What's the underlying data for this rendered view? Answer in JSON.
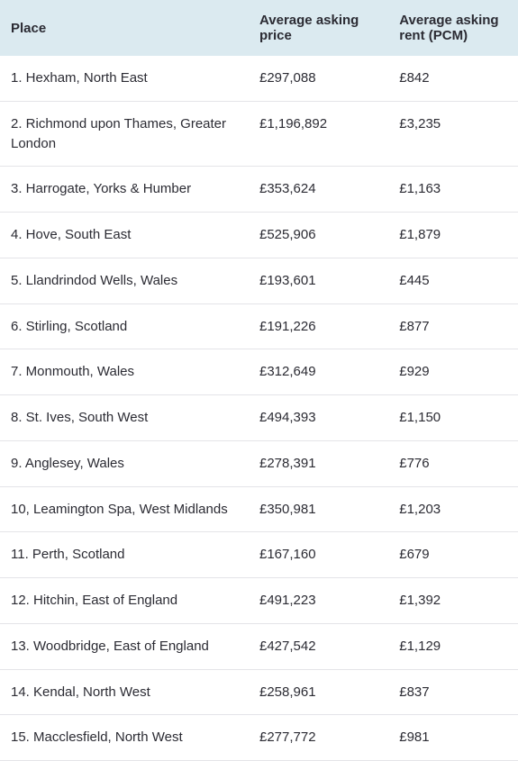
{
  "table": {
    "type": "table",
    "header_bg": "#dbeaf0",
    "row_border_color": "#e4e4e8",
    "text_color": "#2b2b33",
    "font_size": 15,
    "columns": [
      {
        "label": "Place",
        "key": "place",
        "width_pct": 48
      },
      {
        "label": "Average asking price",
        "key": "price",
        "width_pct": 27
      },
      {
        "label": "Average asking rent (PCM)",
        "key": "rent",
        "width_pct": 25
      }
    ],
    "rows": [
      {
        "place": "1. Hexham, North East",
        "price": "£297,088",
        "rent": "£842"
      },
      {
        "place": "2. Richmond upon Thames, Greater London",
        "price": "£1,196,892",
        "rent": "£3,235"
      },
      {
        "place": "3. Harrogate, Yorks & Humber",
        "price": "£353,624",
        "rent": "£1,163"
      },
      {
        "place": "4. Hove, South East",
        "price": "£525,906",
        "rent": "£1,879"
      },
      {
        "place": "5. Llandrindod Wells, Wales",
        "price": "£193,601",
        "rent": "£445"
      },
      {
        "place": "6. Stirling, Scotland",
        "price": "£191,226",
        "rent": "£877"
      },
      {
        "place": "7. Monmouth, Wales",
        "price": "£312,649",
        "rent": "£929"
      },
      {
        "place": "8. St. Ives, South West",
        "price": "£494,393",
        "rent": "£1,150"
      },
      {
        "place": "9. Anglesey, Wales",
        "price": "£278,391",
        "rent": "£776"
      },
      {
        "place": "10, Leamington Spa, West Midlands",
        "price": "£350,981",
        "rent": "£1,203"
      },
      {
        "place": "11. Perth, Scotland",
        "price": "£167,160",
        "rent": "£679"
      },
      {
        "place": "12. Hitchin, East of England",
        "price": "£491,223",
        "rent": "£1,392"
      },
      {
        "place": "13. Woodbridge, East of England",
        "price": "£427,542",
        "rent": "£1,129"
      },
      {
        "place": "14. Kendal, North West",
        "price": "£258,961",
        "rent": "£837"
      },
      {
        "place": "15. Macclesfield, North West",
        "price": "£277,772",
        "rent": "£981"
      }
    ]
  }
}
